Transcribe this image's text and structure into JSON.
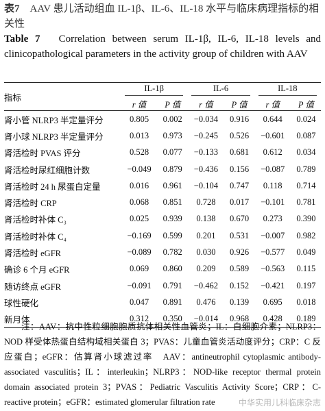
{
  "caption": {
    "cn_label": "表7",
    "cn_text": "AAV 患儿活动组血 IL-1β、IL-6、IL-18 水平与临床病理指标的相关性",
    "en_label": "Table 7",
    "en_text": "Correlation between serum IL-1β, IL-6, IL-18 levels and clinicopathological parameters in the activity group of children with AAV"
  },
  "table": {
    "stub_header": "指标",
    "groups": [
      "IL-1β",
      "IL-6",
      "IL-18"
    ],
    "subheaders": [
      "r 值",
      "P 值",
      "r 值",
      "P 值",
      "r 值",
      "P 值"
    ],
    "rows": [
      [
        "肾小管 NLRP3 半定量评分",
        "0.805",
        "0.002",
        "−0.034",
        "0.916",
        "0.644",
        "0.024"
      ],
      [
        "肾小球 NLRP3 半定量评分",
        "0.013",
        "0.973",
        "−0.245",
        "0.526",
        "−0.601",
        "0.087"
      ],
      [
        "肾活检时 PVAS 评分",
        "0.528",
        "0.077",
        "−0.133",
        "0.681",
        "0.612",
        "0.034"
      ],
      [
        "肾活检时尿红细胞计数",
        "−0.049",
        "0.879",
        "−0.436",
        "0.156",
        "−0.087",
        "0.789"
      ],
      [
        "肾活检时 24 h 尿蛋白定量",
        "0.016",
        "0.961",
        "−0.104",
        "0.747",
        "0.118",
        "0.714"
      ],
      [
        "肾活检时 CRP",
        "0.068",
        "0.851",
        "0.728",
        "0.017",
        "−0.101",
        "0.781"
      ],
      [
        "肾活检时补体 C₃",
        "0.025",
        "0.939",
        "0.138",
        "0.670",
        "0.273",
        "0.390"
      ],
      [
        "肾活检时补体 C₄",
        "−0.169",
        "0.599",
        "0.201",
        "0.531",
        "−0.007",
        "0.982"
      ],
      [
        "肾活检时 eGFR",
        "−0.089",
        "0.782",
        "0.030",
        "0.926",
        "−0.577",
        "0.049"
      ],
      [
        "确诊 6 个月 eGFR",
        "0.069",
        "0.860",
        "0.209",
        "0.589",
        "−0.563",
        "0.115"
      ],
      [
        "随访终点 eGFR",
        "−0.091",
        "0.791",
        "−0.462",
        "0.152",
        "−0.421",
        "0.197"
      ],
      [
        "球性硬化",
        "0.047",
        "0.891",
        "0.476",
        "0.139",
        "0.695",
        "0.018"
      ],
      [
        "新月体",
        "0.312",
        "0.350",
        "−0.014",
        "0.968",
        "0.428",
        "0.189"
      ]
    ]
  },
  "note": "注：AAV：抗中性粒细胞胞质抗体相关性血管炎；IL：白细胞介素；NLRP3：NOD 样受体热蛋白结构域相关蛋白 3；PVAS：儿童血管炎活动度评分；CRP：C 反应蛋白；eGFR：估算肾小球滤过率　AAV：antineutrophil cytoplasmic antibody-associated vasculitis；IL：interleukin；NLRP3：NOD-like receptor thermal protein domain associated protein 3；PVAS：Pediatric Vasculitis Activity Score；CRP：C-reactive protein；eGFR：estimated glomerular filtration rate",
  "watermark": "中华实用儿科临床杂志"
}
